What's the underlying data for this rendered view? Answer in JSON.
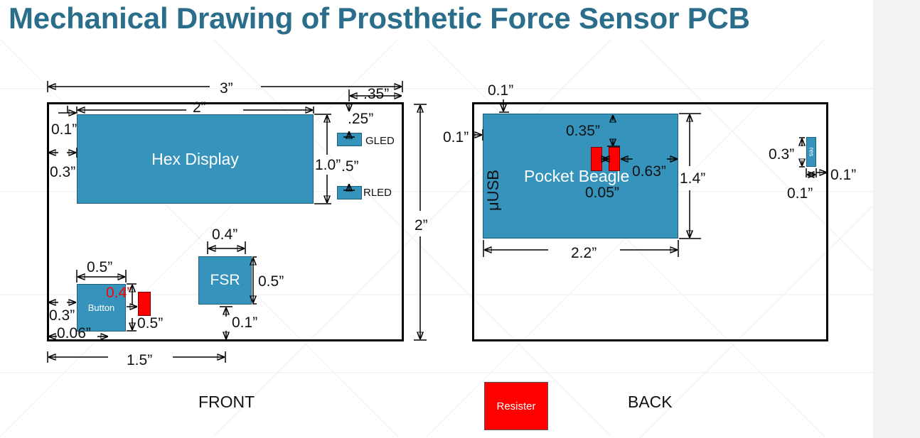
{
  "title": "Mechanical Drawing of Prosthetic Force Sensor PCB",
  "front": {
    "caption": "FRONT",
    "components": {
      "hex_display": "Hex Display",
      "gled": "GLED",
      "rled": "RLED",
      "fsr": "FSR",
      "button": "Button"
    },
    "dims": {
      "board_width": "3”",
      "board_height": "2”",
      "hex_width": "2”",
      "hex_height": "1.0”",
      "right_margin": ".35”",
      "led_top": ".25”",
      "led_spacing": ".5”",
      "hex_top": "0.1”",
      "hex_left": "0.3”",
      "fsr_width": "0.4”",
      "fsr_height": "0.5”",
      "fsr_bottom": "0.1”",
      "fsr_pos": "1.5”",
      "button_width": "0.5”",
      "button_resistor_gap": "0.4”",
      "button_left": "0.3”",
      "button_height": "0.5”",
      "button_bottom": "0.06”"
    }
  },
  "back": {
    "caption": "BACK",
    "components": {
      "pocket_beagle": "Pocket Beagle",
      "usb": "μUSB",
      "side_part": "res"
    },
    "dims": {
      "top": "0.1”",
      "left": "0.1”",
      "res_top": "0.35”",
      "res_right": "0.63”",
      "res_gap": "0.05”",
      "beagle_height": "1.4”",
      "beagle_width": "2.2”",
      "side_height": "0.3”",
      "side_width": "0.1”",
      "side_right": "0.1”"
    }
  },
  "legend": {
    "label": "Resister"
  },
  "colors": {
    "title": "#2a6e8b",
    "component": "#3593bc",
    "resistor": "#ff0000"
  }
}
